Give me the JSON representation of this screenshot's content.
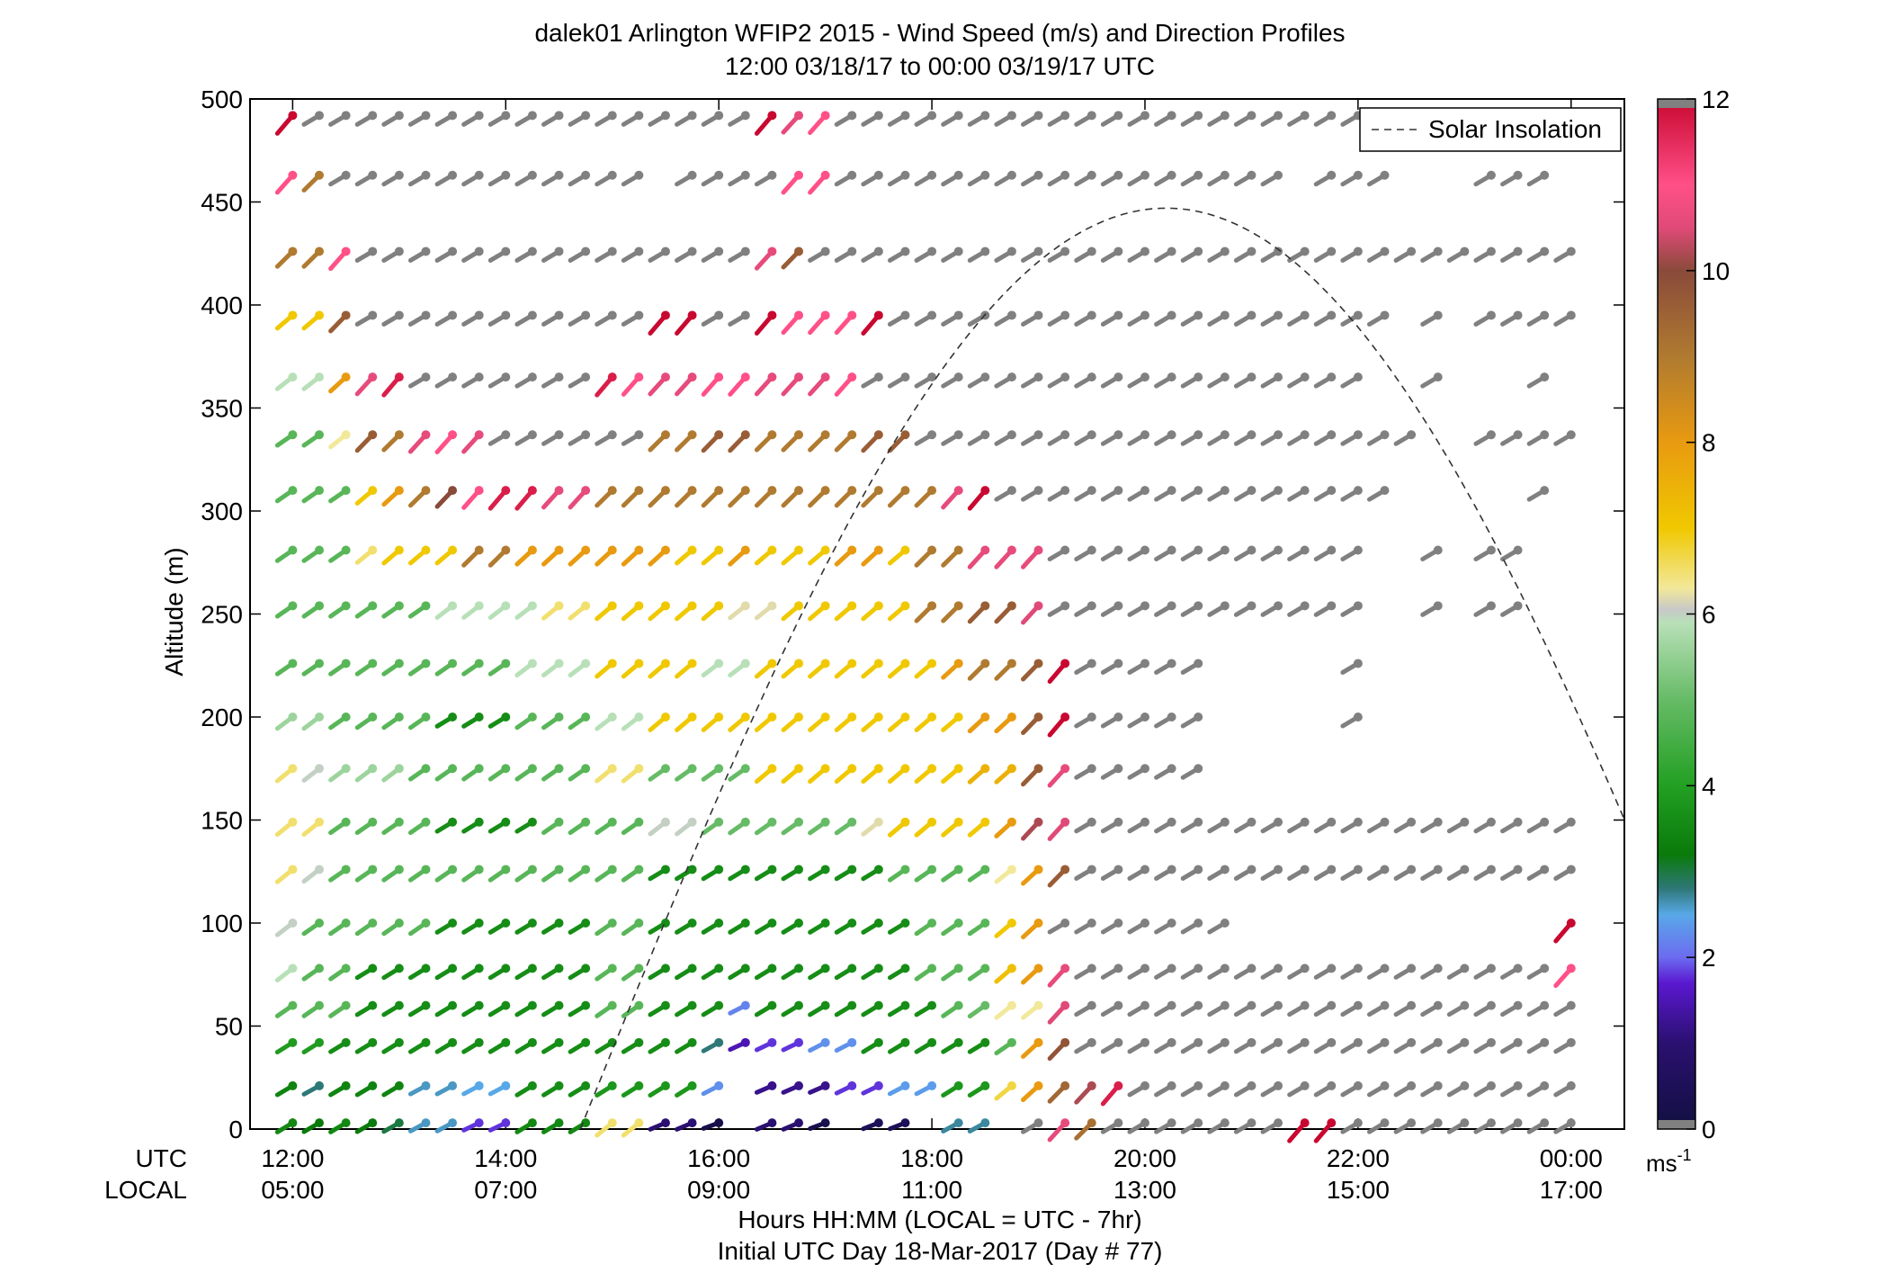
{
  "chart_data": {
    "type": "wind_barb_profile",
    "title_line1": "dalek01 Arlington WFIP2 2015 - Wind Speed (m/s) and Direction Profiles",
    "title_line2": "12:00 03/18/17 to 00:00 03/19/17  UTC",
    "ylabel": "Altitude (m)",
    "ylim": [
      0,
      500
    ],
    "yticks": [
      0,
      50,
      100,
      150,
      200,
      250,
      300,
      350,
      400,
      450,
      500
    ],
    "xlim_hours_utc": [
      11.6,
      24.5
    ],
    "x_axis_label": "Hours HH:MM  (LOCAL = UTC - 7hr)",
    "x_axis_label2": "Initial UTC Day 18-Mar-2017 (Day # 77)",
    "row_label_utc": "UTC",
    "row_label_local": "LOCAL",
    "xticks_hours": [
      12,
      14,
      16,
      18,
      20,
      22,
      24
    ],
    "xtick_labels_utc": [
      "12:00",
      "14:00",
      "16:00",
      "18:00",
      "20:00",
      "22:00",
      "00:00"
    ],
    "xtick_labels_local": [
      "05:00",
      "07:00",
      "09:00",
      "11:00",
      "13:00",
      "15:00",
      "17:00"
    ],
    "legend": {
      "entry": "Solar Insolation",
      "location": "top-right",
      "line_style": "dashed"
    },
    "solar_insolation_curve": {
      "start_hour": 14.7,
      "peak_hour": 20.2,
      "peak_altitude_m": 447,
      "end_hour": 24.5,
      "end_altitude_m": 158
    },
    "colorbar": {
      "unit": "ms",
      "unit_exponent": "-1",
      "range": [
        0,
        12
      ],
      "ticks": [
        0,
        2,
        4,
        6,
        8,
        10,
        12
      ],
      "colors": [
        {
          "speed": 0.0,
          "color": "#121040"
        },
        {
          "speed": 1.0,
          "color": "#2a1070"
        },
        {
          "speed": 1.7,
          "color": "#5a18d0"
        },
        {
          "speed": 2.0,
          "color": "#6c6cf0"
        },
        {
          "speed": 2.5,
          "color": "#58a8e8"
        },
        {
          "speed": 2.8,
          "color": "#2e7878"
        },
        {
          "speed": 3.2,
          "color": "#0a7a0a"
        },
        {
          "speed": 4.0,
          "color": "#22a022"
        },
        {
          "speed": 5.0,
          "color": "#66bb66"
        },
        {
          "speed": 5.9,
          "color": "#b8e0b8"
        },
        {
          "speed": 6.05,
          "color": "#c8c8c8"
        },
        {
          "speed": 6.3,
          "color": "#f2e89a"
        },
        {
          "speed": 7.0,
          "color": "#f0c800"
        },
        {
          "speed": 8.0,
          "color": "#e89a10"
        },
        {
          "speed": 9.0,
          "color": "#b07a30"
        },
        {
          "speed": 10.0,
          "color": "#8a4a3a"
        },
        {
          "speed": 10.5,
          "color": "#e04a78"
        },
        {
          "speed": 11.0,
          "color": "#ff5088"
        },
        {
          "speed": 12.0,
          "color": "#c80830"
        }
      ]
    },
    "missing_color": "#808080",
    "altitudes_m": [
      3,
      21,
      42,
      60,
      78,
      100,
      126,
      149,
      175,
      200,
      226,
      254,
      281,
      310,
      337,
      365,
      395,
      426,
      463,
      492
    ],
    "time_hours_utc": [
      12.0,
      12.25,
      12.5,
      12.75,
      13.0,
      13.25,
      13.5,
      13.75,
      14.0,
      14.25,
      14.5,
      14.75,
      15.0,
      15.25,
      15.5,
      15.75,
      16.0,
      16.25,
      16.5,
      16.75,
      17.0,
      17.25,
      17.5,
      17.75,
      18.0,
      18.25,
      18.5,
      18.75,
      19.0,
      19.25,
      19.5,
      19.75,
      20.0,
      20.25,
      20.5,
      20.75,
      21.0,
      21.25,
      21.5,
      21.75,
      22.0,
      22.25,
      22.5,
      22.75,
      23.0,
      23.25,
      23.5,
      23.75,
      24.0
    ],
    "note": "Each profile maps altitude index -> speed values across time_hours_utc; null = no barb shown; -1 = missing (gray barb)",
    "speed": [
      [
        3.5,
        3.2,
        3.5,
        3.2,
        3.0,
        2.6,
        2.6,
        1.8,
        1.8,
        3.5,
        3.5,
        3.5,
        6.5,
        6.5,
        1.0,
        1.0,
        0.2,
        null,
        1.0,
        1.0,
        0.3,
        null,
        0.5,
        0.5,
        null,
        2.7,
        2.7,
        null,
        -1,
        10.6,
        9.2,
        -1,
        -1,
        -1,
        -1,
        -1,
        -1,
        -1,
        12.0,
        12.0,
        -1,
        -1,
        -1,
        -1,
        -1,
        -1,
        -1,
        -1,
        -1
      ],
      [
        3.4,
        2.8,
        3.4,
        3.4,
        3.4,
        2.6,
        2.6,
        2.5,
        2.5,
        3.6,
        3.6,
        3.6,
        3.8,
        3.8,
        3.8,
        3.8,
        2.3,
        null,
        1.2,
        1.2,
        1.2,
        1.8,
        1.8,
        2.4,
        2.4,
        3.8,
        3.8,
        6.7,
        8.0,
        9.4,
        10.2,
        11.7,
        -1,
        -1,
        -1,
        -1,
        -1,
        -1,
        -1,
        -1,
        -1,
        -1,
        -1,
        -1,
        -1,
        -1,
        -1,
        -1,
        -1
      ],
      [
        3.9,
        3.9,
        3.6,
        3.6,
        3.6,
        3.6,
        3.6,
        3.6,
        3.6,
        3.6,
        3.6,
        3.6,
        3.6,
        3.6,
        3.6,
        3.6,
        2.8,
        1.5,
        1.8,
        1.8,
        2.3,
        2.3,
        3.6,
        3.6,
        3.6,
        3.6,
        3.6,
        4.8,
        8.0,
        9.8,
        -1,
        -1,
        -1,
        -1,
        -1,
        -1,
        -1,
        -1,
        -1,
        -1,
        -1,
        -1,
        -1,
        -1,
        -1,
        -1,
        -1,
        -1,
        -1
      ],
      [
        4.8,
        4.8,
        4.8,
        3.6,
        3.6,
        3.6,
        3.6,
        3.6,
        3.6,
        3.6,
        3.6,
        3.6,
        4.8,
        4.8,
        3.6,
        3.6,
        3.6,
        2.2,
        3.6,
        3.6,
        3.6,
        3.6,
        3.6,
        3.6,
        3.6,
        4.8,
        5.0,
        6.3,
        6.3,
        10.5,
        -1,
        -1,
        -1,
        -1,
        -1,
        -1,
        -1,
        -1,
        -1,
        -1,
        -1,
        -1,
        -1,
        -1,
        -1,
        -1,
        -1,
        -1,
        -1
      ],
      [
        5.9,
        4.8,
        4.8,
        3.6,
        3.6,
        3.6,
        3.6,
        3.6,
        3.6,
        3.6,
        3.6,
        3.6,
        4.8,
        4.8,
        3.6,
        3.6,
        3.6,
        3.6,
        3.6,
        3.6,
        3.6,
        3.6,
        3.6,
        3.6,
        4.8,
        4.8,
        4.8,
        7.2,
        8.0,
        10.6,
        -1,
        -1,
        -1,
        -1,
        -1,
        -1,
        -1,
        -1,
        -1,
        -1,
        -1,
        -1,
        -1,
        -1,
        -1,
        -1,
        -1,
        -1,
        11.0
      ],
      [
        6.0,
        4.8,
        4.8,
        4.8,
        4.8,
        4.8,
        3.6,
        3.6,
        3.6,
        3.6,
        3.6,
        3.6,
        4.8,
        4.8,
        3.6,
        3.6,
        3.6,
        3.6,
        3.6,
        3.6,
        3.6,
        3.6,
        3.6,
        3.6,
        4.8,
        4.8,
        4.8,
        7.0,
        8.0,
        -1,
        -1,
        -1,
        -1,
        -1,
        -1,
        -1,
        null,
        null,
        null,
        null,
        null,
        null,
        null,
        null,
        null,
        null,
        null,
        null,
        12.0
      ],
      [
        6.5,
        6.0,
        4.8,
        4.8,
        4.8,
        4.8,
        4.8,
        4.8,
        4.8,
        4.8,
        4.8,
        4.8,
        4.8,
        4.8,
        3.6,
        3.6,
        3.6,
        3.6,
        3.6,
        3.6,
        3.6,
        3.6,
        3.6,
        4.8,
        4.8,
        4.8,
        4.8,
        6.3,
        8.0,
        9.6,
        -1,
        -1,
        -1,
        -1,
        -1,
        -1,
        -1,
        -1,
        -1,
        -1,
        -1,
        -1,
        -1,
        -1,
        -1,
        -1,
        -1,
        -1,
        -1
      ],
      [
        6.5,
        6.5,
        4.8,
        4.8,
        4.8,
        4.8,
        3.6,
        3.6,
        3.6,
        3.6,
        4.8,
        4.8,
        4.8,
        4.8,
        6.0,
        6.0,
        5.0,
        5.0,
        5.0,
        5.0,
        5.0,
        5.0,
        6.2,
        7.0,
        7.0,
        7.0,
        7.0,
        8.0,
        10.2,
        10.5,
        -1,
        -1,
        -1,
        -1,
        -1,
        -1,
        -1,
        -1,
        -1,
        -1,
        -1,
        -1,
        -1,
        -1,
        -1,
        -1,
        -1,
        -1,
        -1
      ],
      [
        6.5,
        6.0,
        5.6,
        5.6,
        5.6,
        4.8,
        4.8,
        4.8,
        4.8,
        4.8,
        4.8,
        4.8,
        6.5,
        6.5,
        5.0,
        5.0,
        5.0,
        5.0,
        7.0,
        7.0,
        7.0,
        7.0,
        7.0,
        7.0,
        7.0,
        7.0,
        7.5,
        7.5,
        9.6,
        10.6,
        -1,
        -1,
        -1,
        -1,
        -1,
        null,
        null,
        null,
        null,
        null,
        null,
        null,
        null,
        null,
        null,
        null,
        null,
        null,
        null
      ],
      [
        5.6,
        5.6,
        4.8,
        4.8,
        4.8,
        4.8,
        3.6,
        3.6,
        3.6,
        4.8,
        4.8,
        4.8,
        5.9,
        5.9,
        7.0,
        7.0,
        7.0,
        7.0,
        7.0,
        7.0,
        7.0,
        7.0,
        7.0,
        7.0,
        7.0,
        7.0,
        8.0,
        8.0,
        9.6,
        12.0,
        -1,
        -1,
        -1,
        -1,
        -1,
        null,
        null,
        null,
        null,
        null,
        -1,
        null,
        null,
        null,
        null,
        null,
        null,
        null,
        null
      ],
      [
        4.8,
        4.8,
        4.8,
        4.8,
        4.8,
        4.8,
        4.8,
        4.8,
        4.8,
        5.9,
        5.9,
        5.9,
        7.0,
        7.0,
        7.0,
        7.0,
        5.9,
        5.9,
        7.0,
        7.0,
        7.0,
        7.0,
        7.0,
        7.0,
        7.0,
        8.0,
        9.0,
        9.0,
        9.6,
        12.0,
        -1,
        -1,
        -1,
        -1,
        -1,
        null,
        null,
        null,
        null,
        null,
        -1,
        null,
        null,
        null,
        null,
        null,
        null,
        null,
        null
      ],
      [
        4.8,
        4.8,
        4.8,
        4.8,
        4.8,
        4.8,
        5.9,
        5.9,
        5.9,
        5.9,
        6.5,
        6.5,
        7.0,
        7.0,
        7.0,
        7.0,
        7.0,
        6.2,
        6.2,
        7.0,
        7.0,
        7.0,
        7.0,
        7.0,
        9.0,
        9.0,
        9.6,
        9.6,
        10.5,
        -1,
        -1,
        -1,
        -1,
        -1,
        -1,
        -1,
        -1,
        -1,
        -1,
        -1,
        -1,
        null,
        null,
        -1,
        null,
        -1,
        -1,
        null,
        null
      ],
      [
        4.8,
        4.8,
        4.8,
        6.5,
        7.0,
        7.0,
        7.0,
        9.0,
        9.0,
        8.0,
        8.0,
        8.0,
        8.0,
        8.0,
        8.0,
        7.0,
        7.0,
        8.0,
        7.0,
        7.0,
        7.0,
        8.0,
        8.0,
        7.0,
        9.0,
        9.0,
        10.6,
        10.6,
        10.6,
        -1,
        -1,
        -1,
        -1,
        -1,
        -1,
        -1,
        -1,
        -1,
        -1,
        -1,
        -1,
        null,
        null,
        -1,
        null,
        -1,
        -1,
        null,
        null
      ],
      [
        4.8,
        4.8,
        4.8,
        7.0,
        8.0,
        9.0,
        10.0,
        11.0,
        11.7,
        11.7,
        10.6,
        10.6,
        9.0,
        9.0,
        9.0,
        9.0,
        9.0,
        9.0,
        9.0,
        9.0,
        9.0,
        9.0,
        9.0,
        9.0,
        9.0,
        10.6,
        12.0,
        -1,
        -1,
        -1,
        -1,
        -1,
        -1,
        -1,
        -1,
        -1,
        -1,
        -1,
        -1,
        -1,
        -1,
        -1,
        null,
        null,
        null,
        null,
        null,
        -1,
        null
      ],
      [
        4.8,
        4.8,
        6.3,
        9.6,
        9.0,
        10.6,
        11.0,
        10.6,
        -1,
        -1,
        -1,
        -1,
        -1,
        -1,
        9.0,
        9.0,
        9.6,
        9.6,
        9.0,
        9.0,
        9.0,
        9.0,
        9.6,
        9.6,
        -1,
        -1,
        -1,
        -1,
        -1,
        -1,
        -1,
        -1,
        -1,
        -1,
        -1,
        -1,
        -1,
        -1,
        -1,
        -1,
        -1,
        -1,
        -1,
        null,
        null,
        -1,
        -1,
        -1,
        -1
      ],
      [
        5.9,
        5.9,
        8.0,
        10.6,
        11.7,
        -1,
        -1,
        -1,
        -1,
        -1,
        -1,
        -1,
        11.7,
        11.0,
        10.6,
        10.6,
        11.0,
        11.0,
        10.6,
        10.6,
        10.6,
        11.0,
        -1,
        -1,
        -1,
        -1,
        -1,
        -1,
        -1,
        -1,
        -1,
        -1,
        -1,
        -1,
        -1,
        -1,
        -1,
        -1,
        -1,
        -1,
        -1,
        null,
        null,
        -1,
        null,
        null,
        null,
        -1,
        null
      ],
      [
        7.0,
        7.0,
        9.6,
        -1,
        -1,
        -1,
        -1,
        -1,
        -1,
        -1,
        -1,
        -1,
        -1,
        -1,
        12.0,
        12.0,
        -1,
        -1,
        12.0,
        11.0,
        11.0,
        11.0,
        12.0,
        -1,
        -1,
        -1,
        -1,
        -1,
        -1,
        -1,
        -1,
        -1,
        -1,
        -1,
        -1,
        -1,
        -1,
        -1,
        -1,
        -1,
        -1,
        -1,
        null,
        -1,
        null,
        -1,
        -1,
        -1,
        -1
      ],
      [
        9.0,
        9.0,
        11.0,
        -1,
        -1,
        -1,
        -1,
        -1,
        -1,
        -1,
        -1,
        -1,
        -1,
        -1,
        -1,
        -1,
        -1,
        -1,
        10.6,
        9.6,
        -1,
        -1,
        -1,
        -1,
        -1,
        -1,
        -1,
        -1,
        -1,
        -1,
        -1,
        -1,
        -1,
        -1,
        -1,
        -1,
        -1,
        -1,
        -1,
        -1,
        -1,
        -1,
        -1,
        -1,
        -1,
        -1,
        -1,
        -1,
        -1
      ],
      [
        11.0,
        9.0,
        -1,
        -1,
        -1,
        -1,
        -1,
        -1,
        -1,
        -1,
        -1,
        -1,
        -1,
        -1,
        null,
        -1,
        -1,
        -1,
        -1,
        11.0,
        11.0,
        -1,
        -1,
        -1,
        -1,
        -1,
        -1,
        -1,
        -1,
        -1,
        -1,
        -1,
        -1,
        -1,
        -1,
        -1,
        -1,
        -1,
        null,
        -1,
        -1,
        -1,
        null,
        null,
        null,
        -1,
        -1,
        -1,
        null
      ],
      [
        12.0,
        -1,
        -1,
        -1,
        -1,
        -1,
        -1,
        -1,
        -1,
        -1,
        -1,
        -1,
        -1,
        -1,
        -1,
        -1,
        -1,
        -1,
        12.0,
        10.6,
        11.0,
        -1,
        -1,
        -1,
        -1,
        -1,
        -1,
        -1,
        -1,
        -1,
        -1,
        -1,
        -1,
        -1,
        -1,
        -1,
        -1,
        -1,
        -1,
        -1,
        -1,
        -1,
        -1,
        -1,
        null,
        null,
        null,
        null,
        null
      ]
    ]
  }
}
